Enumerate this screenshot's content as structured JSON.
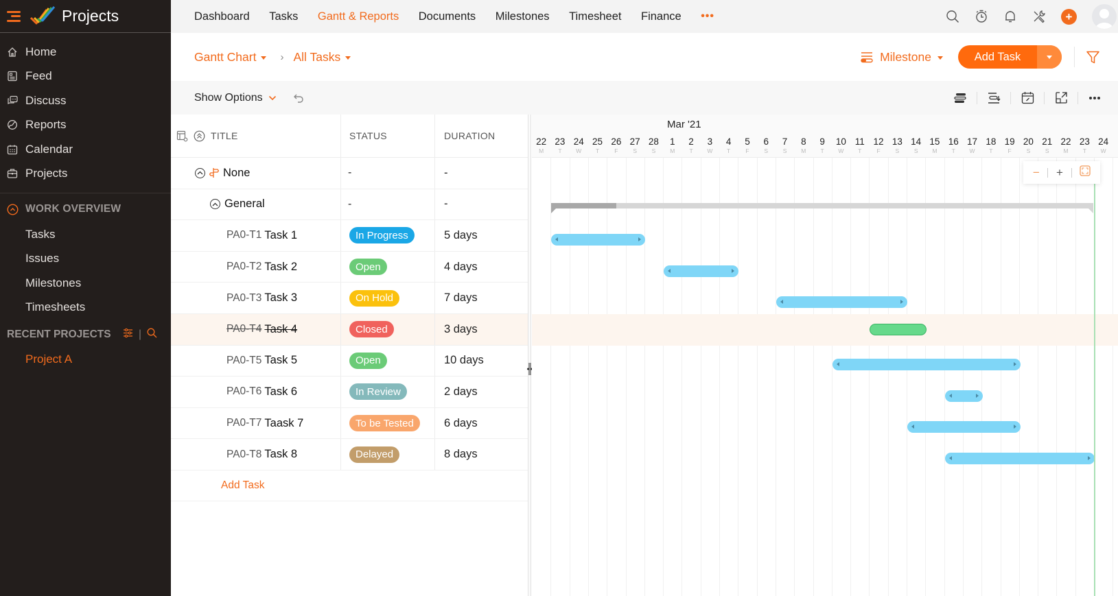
{
  "app": {
    "title": "Projects"
  },
  "sidebar": {
    "items": [
      {
        "label": "Home",
        "icon": "home-icon"
      },
      {
        "label": "Feed",
        "icon": "feed-icon"
      },
      {
        "label": "Discuss",
        "icon": "discuss-icon"
      },
      {
        "label": "Reports",
        "icon": "reports-icon"
      },
      {
        "label": "Calendar",
        "icon": "calendar-icon"
      },
      {
        "label": "Projects",
        "icon": "briefcase-icon"
      }
    ],
    "work_overview": {
      "label": "WORK OVERVIEW",
      "items": [
        "Tasks",
        "Issues",
        "Milestones",
        "Timesheets"
      ]
    },
    "recent_projects": {
      "label": "RECENT PROJECTS",
      "separator": "|",
      "items": [
        "Project A"
      ]
    }
  },
  "topnav": {
    "items": [
      "Dashboard",
      "Tasks",
      "Gantt & Reports",
      "Documents",
      "Milestones",
      "Timesheet",
      "Finance"
    ],
    "active": "Gantt & Reports",
    "more": "•••",
    "plus": "+"
  },
  "subheader": {
    "breadcrumb": [
      "Gantt Chart",
      "All Tasks"
    ],
    "crumb_separator": "›",
    "milestone_label": "Milestone",
    "add_task_label": "Add Task"
  },
  "options": {
    "show_options_label": "Show Options",
    "chevron": "⌄"
  },
  "grid": {
    "headers": {
      "title": "TITLE",
      "status": "STATUS",
      "duration": "DURATION"
    },
    "groups": [
      {
        "title": "None",
        "status": "-",
        "duration": "-"
      },
      {
        "title": "General",
        "status": "-",
        "duration": "-"
      }
    ],
    "tasks": [
      {
        "id": "PA0-T1",
        "name": "Task 1",
        "status": "In Progress",
        "status_color": "#1aa7e6",
        "duration": "5 days",
        "closed": false
      },
      {
        "id": "PA0-T2",
        "name": "Task 2",
        "status": "Open",
        "status_color": "#6bcb77",
        "duration": "4 days",
        "closed": false
      },
      {
        "id": "PA0-T3",
        "name": "Task 3",
        "status": "On Hold",
        "status_color": "#fbc10d",
        "duration": "7 days",
        "closed": false
      },
      {
        "id": "PA0-T4",
        "name": "Task 4",
        "status": "Closed",
        "status_color": "#f0625d",
        "duration": "3 days",
        "closed": true
      },
      {
        "id": "PA0-T5",
        "name": "Task 5",
        "status": "Open",
        "status_color": "#6bcb77",
        "duration": "10 days",
        "closed": false
      },
      {
        "id": "PA0-T6",
        "name": "Task 6",
        "status": "In Review",
        "status_color": "#84b9bb",
        "duration": "2 days",
        "closed": false
      },
      {
        "id": "PA0-T7",
        "name": "Taask 7",
        "status": "To be Tested",
        "status_color": "#f9a66c",
        "duration": "6 days",
        "closed": false
      },
      {
        "id": "PA0-T8",
        "name": "Task 8",
        "status": "Delayed",
        "status_color": "#c29d6a",
        "duration": "8 days",
        "closed": false
      }
    ],
    "add_task_label": "Add Task"
  },
  "gantt": {
    "month_label": "Mar '21",
    "days": [
      {
        "n": "22",
        "w": "M"
      },
      {
        "n": "23",
        "w": "T"
      },
      {
        "n": "24",
        "w": "W"
      },
      {
        "n": "25",
        "w": "T"
      },
      {
        "n": "26",
        "w": "F"
      },
      {
        "n": "27",
        "w": "S"
      },
      {
        "n": "28",
        "w": "S"
      },
      {
        "n": "1",
        "w": "M"
      },
      {
        "n": "2",
        "w": "T"
      },
      {
        "n": "3",
        "w": "W"
      },
      {
        "n": "4",
        "w": "T"
      },
      {
        "n": "5",
        "w": "F"
      },
      {
        "n": "6",
        "w": "S"
      },
      {
        "n": "7",
        "w": "S"
      },
      {
        "n": "8",
        "w": "M"
      },
      {
        "n": "9",
        "w": "T"
      },
      {
        "n": "10",
        "w": "W"
      },
      {
        "n": "11",
        "w": "T"
      },
      {
        "n": "12",
        "w": "F"
      },
      {
        "n": "13",
        "w": "S"
      },
      {
        "n": "14",
        "w": "S"
      },
      {
        "n": "15",
        "w": "M"
      },
      {
        "n": "16",
        "w": "T"
      },
      {
        "n": "17",
        "w": "W"
      },
      {
        "n": "18",
        "w": "T"
      },
      {
        "n": "19",
        "w": "F"
      },
      {
        "n": "20",
        "w": "S"
      },
      {
        "n": "21",
        "w": "S"
      },
      {
        "n": "22",
        "w": "M"
      },
      {
        "n": "23",
        "w": "T"
      },
      {
        "n": "24",
        "w": "W"
      }
    ],
    "zoom_controls": {
      "minus": "−",
      "plus": "+"
    },
    "colors": {
      "task_bar": "#7fd6f7",
      "closed_bar": "#66d98b",
      "summary": "#d6d6d6",
      "today_line": "#a8e0b4",
      "accent": "#f26b1d"
    }
  }
}
